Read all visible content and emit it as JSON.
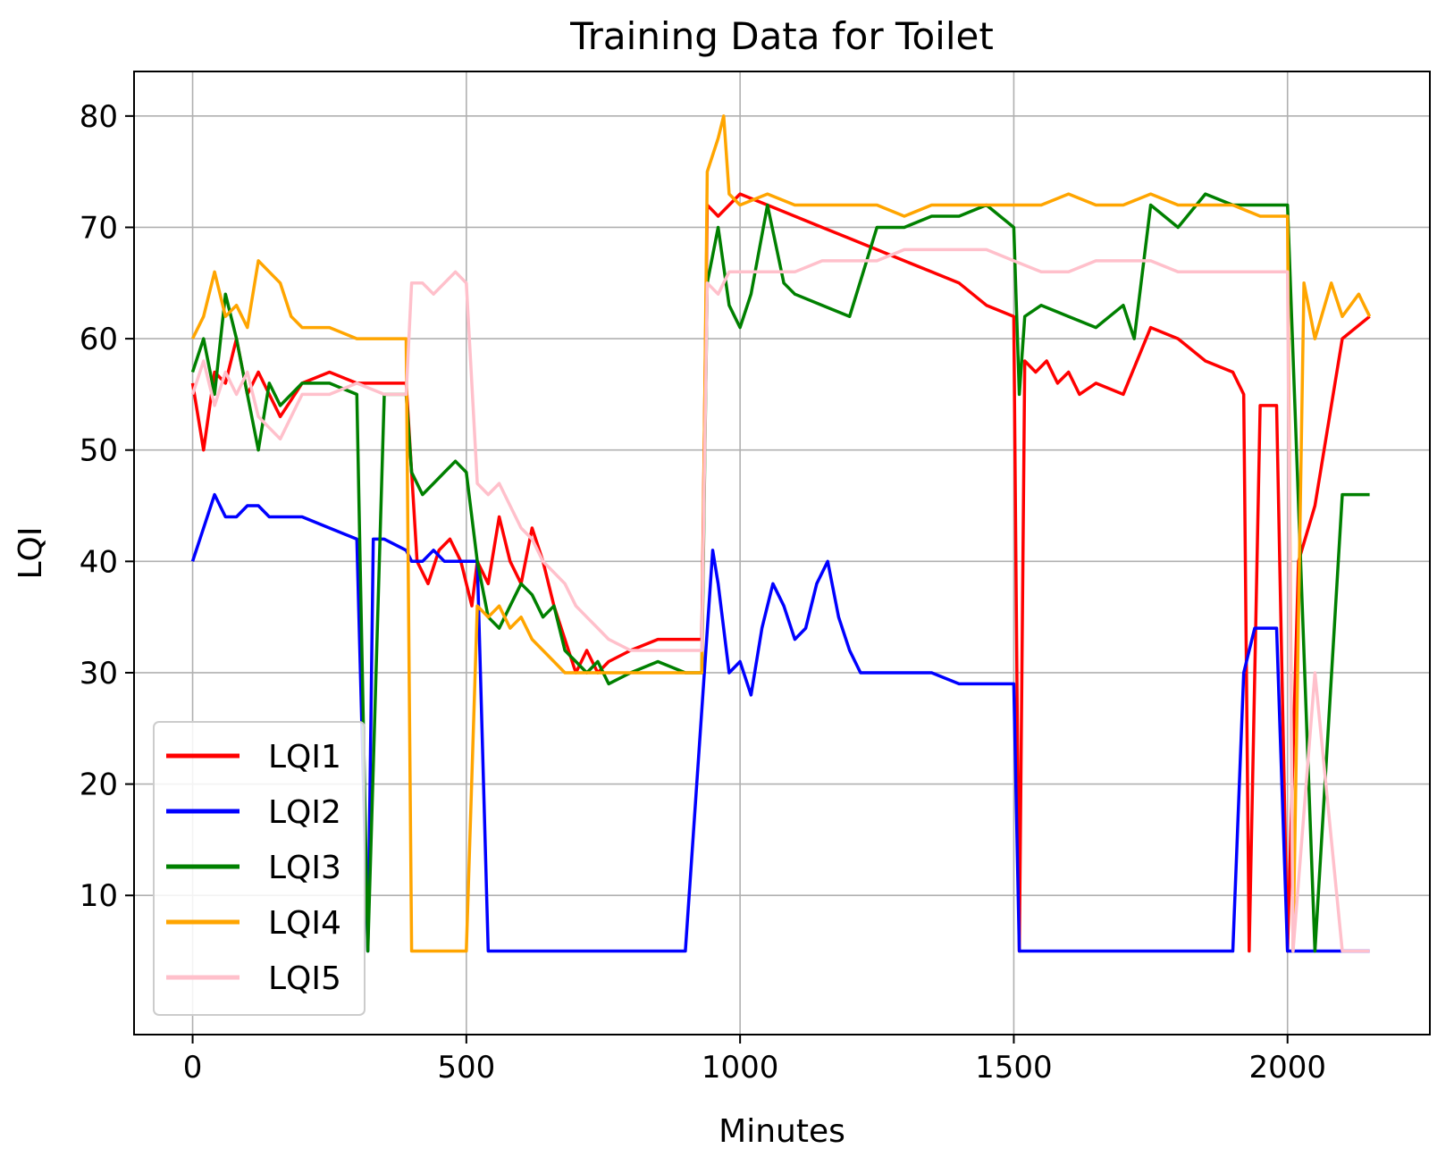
{
  "chart_data": {
    "type": "line",
    "title": "Training Data for Toilet",
    "xlabel": "Minutes",
    "ylabel": "LQI",
    "xlim": [
      -107,
      2260
    ],
    "ylim": [
      -2.5,
      84
    ],
    "xticks": [
      0,
      500,
      1000,
      1500,
      2000
    ],
    "yticks": [
      10,
      20,
      30,
      40,
      50,
      60,
      70,
      80
    ],
    "grid": true,
    "legend_position": "lower-left",
    "colors": {
      "LQI1": "#ff0000",
      "LQI2": "#0000ff",
      "LQI3": "#008000",
      "LQI4": "#ffa500",
      "LQI5": "#ffc0cb"
    },
    "series": [
      {
        "name": "LQI1",
        "color": "#ff0000",
        "x": [
          0,
          20,
          40,
          60,
          80,
          100,
          120,
          140,
          160,
          200,
          250,
          300,
          350,
          390,
          410,
          430,
          450,
          470,
          490,
          510,
          520,
          540,
          560,
          580,
          600,
          620,
          640,
          660,
          680,
          700,
          720,
          740,
          760,
          800,
          850,
          900,
          930,
          940,
          960,
          980,
          1000,
          1050,
          1100,
          1150,
          1200,
          1250,
          1300,
          1350,
          1400,
          1450,
          1500,
          1510,
          1520,
          1540,
          1560,
          1580,
          1600,
          1620,
          1650,
          1700,
          1750,
          1800,
          1850,
          1900,
          1920,
          1930,
          1950,
          1980,
          2000,
          2020,
          2050,
          2100,
          2150
        ],
        "y": [
          56,
          50,
          57,
          56,
          60,
          55,
          57,
          55,
          53,
          56,
          57,
          56,
          56,
          56,
          40,
          38,
          41,
          42,
          40,
          36,
          40,
          38,
          44,
          40,
          38,
          43,
          40,
          36,
          33,
          30,
          32,
          30,
          31,
          32,
          33,
          33,
          33,
          72,
          71,
          72,
          73,
          72,
          71,
          70,
          69,
          68,
          67,
          66,
          65,
          63,
          62,
          5,
          58,
          57,
          58,
          56,
          57,
          55,
          56,
          55,
          61,
          60,
          58,
          57,
          55,
          5,
          54,
          54,
          5,
          40,
          45,
          60,
          62
        ]
      },
      {
        "name": "LQI2",
        "color": "#0000ff",
        "x": [
          0,
          20,
          40,
          60,
          80,
          100,
          120,
          140,
          160,
          200,
          250,
          300,
          320,
          330,
          350,
          390,
          400,
          420,
          440,
          460,
          480,
          500,
          520,
          540,
          600,
          700,
          800,
          900,
          950,
          960,
          980,
          1000,
          1020,
          1040,
          1060,
          1080,
          1100,
          1120,
          1140,
          1160,
          1180,
          1200,
          1220,
          1250,
          1300,
          1350,
          1400,
          1450,
          1500,
          1510,
          1550,
          1600,
          1650,
          1700,
          1750,
          1800,
          1850,
          1900,
          1920,
          1940,
          1960,
          1980,
          2000,
          2050,
          2100,
          2150
        ],
        "y": [
          40,
          43,
          46,
          44,
          44,
          45,
          45,
          44,
          44,
          44,
          43,
          42,
          5,
          42,
          42,
          41,
          40,
          40,
          41,
          40,
          40,
          40,
          40,
          5,
          5,
          5,
          5,
          5,
          41,
          38,
          30,
          31,
          28,
          34,
          38,
          36,
          33,
          34,
          38,
          40,
          35,
          32,
          30,
          30,
          30,
          30,
          29,
          29,
          29,
          5,
          5,
          5,
          5,
          5,
          5,
          5,
          5,
          5,
          30,
          34,
          34,
          34,
          5,
          5,
          5,
          5
        ]
      },
      {
        "name": "LQI3",
        "color": "#008000",
        "x": [
          0,
          20,
          40,
          60,
          80,
          100,
          120,
          140,
          160,
          200,
          250,
          300,
          320,
          350,
          390,
          400,
          420,
          440,
          460,
          480,
          500,
          520,
          540,
          560,
          580,
          600,
          620,
          640,
          660,
          680,
          700,
          720,
          740,
          760,
          800,
          850,
          900,
          930,
          940,
          960,
          980,
          1000,
          1020,
          1050,
          1080,
          1100,
          1150,
          1200,
          1250,
          1300,
          1350,
          1400,
          1450,
          1500,
          1510,
          1520,
          1550,
          1600,
          1650,
          1700,
          1720,
          1750,
          1800,
          1850,
          1900,
          1950,
          1980,
          2000,
          2050,
          2100,
          2150
        ],
        "y": [
          57,
          60,
          55,
          64,
          60,
          55,
          50,
          56,
          54,
          56,
          56,
          55,
          5,
          55,
          55,
          48,
          46,
          47,
          48,
          49,
          48,
          40,
          35,
          34,
          36,
          38,
          37,
          35,
          36,
          32,
          31,
          30,
          31,
          29,
          30,
          31,
          30,
          30,
          65,
          70,
          63,
          61,
          64,
          72,
          65,
          64,
          63,
          62,
          70,
          70,
          71,
          71,
          72,
          70,
          55,
          62,
          63,
          62,
          61,
          63,
          60,
          72,
          70,
          73,
          72,
          72,
          72,
          72,
          5,
          46,
          46
        ]
      },
      {
        "name": "LQI4",
        "color": "#ffa500",
        "x": [
          0,
          20,
          40,
          60,
          80,
          100,
          120,
          140,
          160,
          180,
          200,
          250,
          300,
          350,
          380,
          390,
          400,
          450,
          500,
          520,
          540,
          560,
          580,
          600,
          620,
          640,
          660,
          680,
          700,
          720,
          740,
          760,
          800,
          850,
          900,
          930,
          940,
          960,
          970,
          980,
          1000,
          1050,
          1100,
          1150,
          1200,
          1250,
          1300,
          1350,
          1400,
          1450,
          1500,
          1550,
          1600,
          1650,
          1700,
          1750,
          1800,
          1850,
          1900,
          1950,
          2000,
          2010,
          2030,
          2050,
          2080,
          2100,
          2130,
          2150
        ],
        "y": [
          60,
          62,
          66,
          62,
          63,
          61,
          67,
          66,
          65,
          62,
          61,
          61,
          60,
          60,
          60,
          60,
          5,
          5,
          5,
          36,
          35,
          36,
          34,
          35,
          33,
          32,
          31,
          30,
          30,
          30,
          30,
          30,
          30,
          30,
          30,
          30,
          75,
          78,
          80,
          73,
          72,
          73,
          72,
          72,
          72,
          72,
          71,
          72,
          72,
          72,
          72,
          72,
          73,
          72,
          72,
          73,
          72,
          72,
          72,
          71,
          71,
          5,
          65,
          60,
          65,
          62,
          64,
          62
        ]
      },
      {
        "name": "LQI5",
        "color": "#ffc0cb",
        "x": [
          0,
          20,
          40,
          60,
          80,
          100,
          120,
          140,
          160,
          200,
          250,
          300,
          350,
          390,
          400,
          420,
          440,
          460,
          480,
          500,
          520,
          540,
          560,
          580,
          600,
          620,
          640,
          660,
          680,
          700,
          720,
          740,
          760,
          800,
          850,
          900,
          930,
          940,
          960,
          980,
          1000,
          1050,
          1100,
          1150,
          1200,
          1250,
          1300,
          1350,
          1400,
          1450,
          1500,
          1550,
          1600,
          1650,
          1700,
          1750,
          1800,
          1850,
          1900,
          1950,
          2000,
          2010,
          2050,
          2100,
          2150
        ],
        "y": [
          55,
          58,
          54,
          57,
          55,
          57,
          53,
          52,
          51,
          55,
          55,
          56,
          55,
          55,
          65,
          65,
          64,
          65,
          66,
          65,
          47,
          46,
          47,
          45,
          43,
          42,
          40,
          39,
          38,
          36,
          35,
          34,
          33,
          32,
          32,
          32,
          32,
          65,
          64,
          66,
          66,
          66,
          66,
          67,
          67,
          67,
          68,
          68,
          68,
          68,
          67,
          66,
          66,
          67,
          67,
          67,
          66,
          66,
          66,
          66,
          66,
          5,
          30,
          5,
          5
        ]
      }
    ]
  }
}
